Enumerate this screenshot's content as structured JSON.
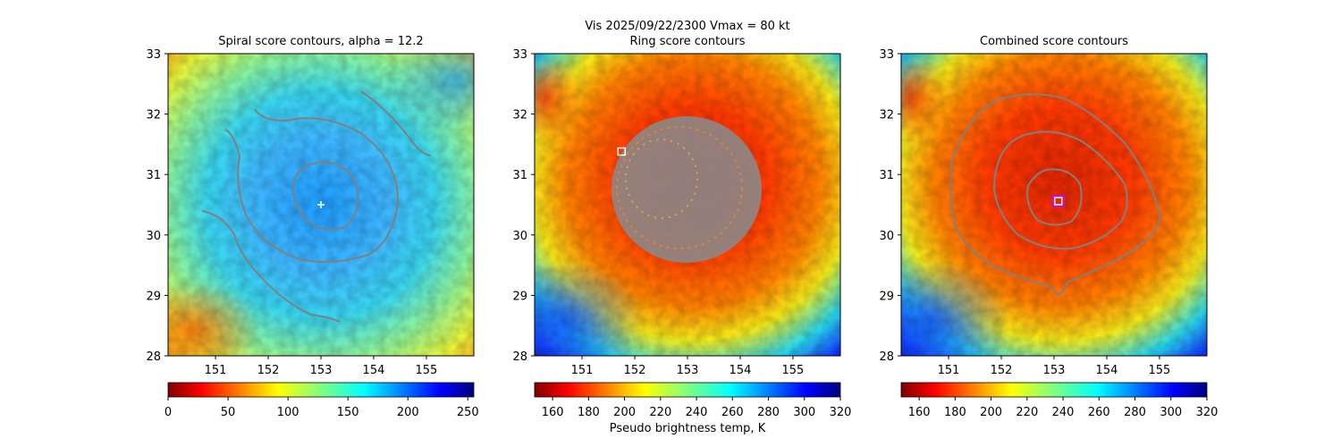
{
  "suptitle": "Vis  2025/09/22/2300    Vmax = 80 kt",
  "colorbar_label": "Pseudo brightness temp, K",
  "chart_data": [
    {
      "type": "heatmap",
      "title": "Spiral score contours, alpha = 12.2",
      "x_ticks": [
        "151",
        "152",
        "153",
        "154",
        "155"
      ],
      "y_ticks": [
        "33",
        "32",
        "31",
        "30",
        "29",
        "28"
      ],
      "xlim": [
        150.1,
        155.9
      ],
      "ylim": [
        28,
        33
      ],
      "colormap": "jet_r",
      "color_range": [
        0,
        255
      ],
      "colorbar_ticks": [
        "0",
        "50",
        "100",
        "150",
        "200",
        "250"
      ],
      "center_marker": {
        "lon": 153.0,
        "lat": 30.5,
        "symbol": "plus",
        "color": "#ffffff"
      }
    },
    {
      "type": "heatmap",
      "title": "Ring score contours",
      "x_ticks": [
        "151",
        "152",
        "153",
        "154",
        "155"
      ],
      "y_ticks": [
        "33",
        "32",
        "31",
        "30",
        "29",
        "28"
      ],
      "xlim": [
        150.1,
        155.9
      ],
      "ylim": [
        28,
        33
      ],
      "colormap": "jet_r",
      "color_range": [
        150,
        320
      ],
      "colorbar_ticks": [
        "160",
        "180",
        "200",
        "220",
        "240",
        "260",
        "280",
        "300",
        "320"
      ],
      "center_marker": {
        "lon": 151.75,
        "lat": 31.38,
        "symbol": "square",
        "color": "#ffffff"
      }
    },
    {
      "type": "heatmap",
      "title": "Combined score contours",
      "x_ticks": [
        "151",
        "152",
        "153",
        "154",
        "155"
      ],
      "y_ticks": [
        "33",
        "32",
        "31",
        "30",
        "29",
        "28"
      ],
      "xlim": [
        150.1,
        155.9
      ],
      "ylim": [
        28,
        33
      ],
      "colormap": "jet_r",
      "color_range": [
        150,
        320
      ],
      "colorbar_ticks": [
        "160",
        "180",
        "200",
        "220",
        "240",
        "260",
        "280",
        "300",
        "320"
      ],
      "center_marker": {
        "lon": 153.08,
        "lat": 30.56,
        "symbol": "square",
        "color": "#ffffff"
      }
    }
  ]
}
